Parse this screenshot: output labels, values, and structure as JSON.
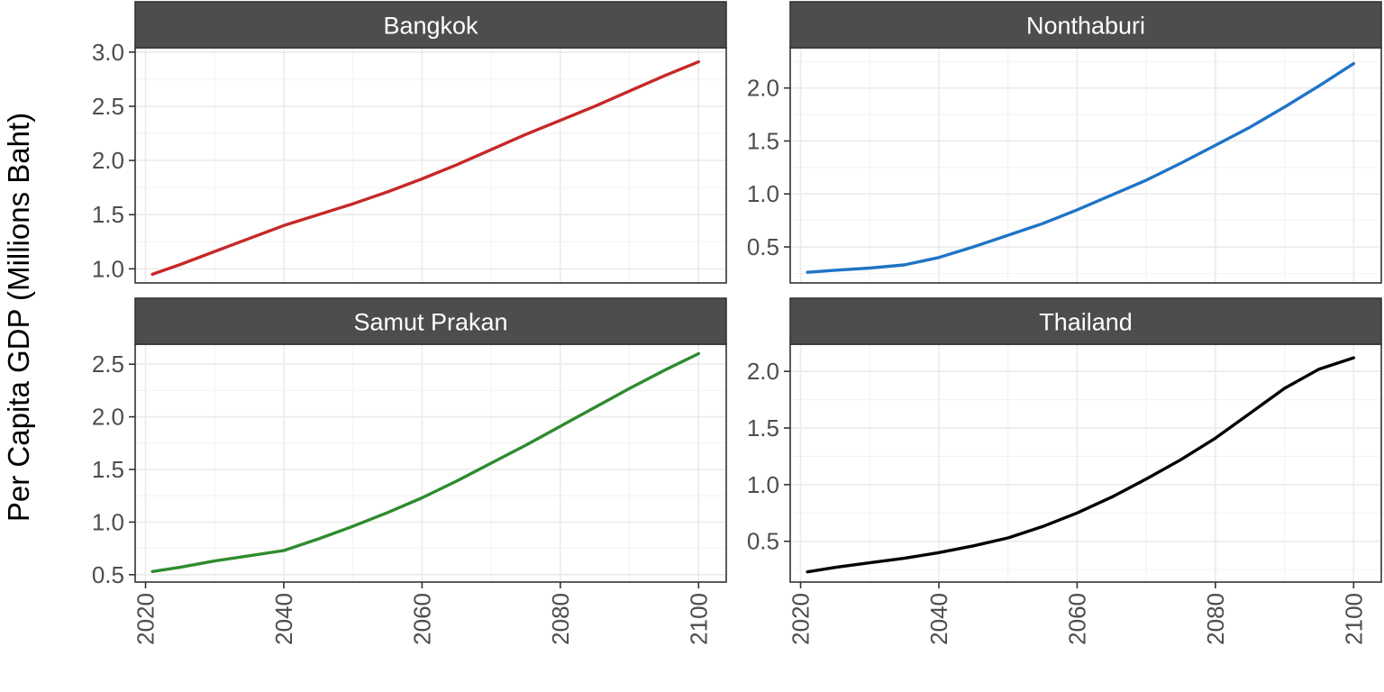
{
  "chart_data": {
    "type": "line",
    "ylabel": "Per Capita GDP (Millions Baht)",
    "xlabel": "",
    "x_ticks": [
      2020,
      2040,
      2060,
      2080,
      2100
    ],
    "xlim": [
      2018.5,
      2104.0
    ],
    "grid": true,
    "legend": "none",
    "panels": [
      {
        "title": "Bangkok",
        "color": "#c62828",
        "ylim": [
          0.87,
          3.04
        ],
        "y_ticks": [
          1.0,
          1.5,
          2.0,
          2.5,
          3.0
        ],
        "y_tick_labels": [
          "1.0",
          "1.5",
          "2.0",
          "2.5",
          "3.0"
        ],
        "x": [
          2021,
          2025,
          2030,
          2035,
          2040,
          2045,
          2050,
          2055,
          2060,
          2065,
          2070,
          2075,
          2080,
          2085,
          2090,
          2095,
          2100
        ],
        "y": [
          0.95,
          1.04,
          1.16,
          1.28,
          1.4,
          1.5,
          1.6,
          1.71,
          1.83,
          1.96,
          2.1,
          2.24,
          2.37,
          2.5,
          2.64,
          2.78,
          2.91
        ]
      },
      {
        "title": "Nonthaburi",
        "color": "#1f74c6",
        "ylim": [
          0.16,
          2.38
        ],
        "y_ticks": [
          0.5,
          1.0,
          1.5,
          2.0
        ],
        "y_tick_labels": [
          "0.5",
          "1.0",
          "1.5",
          "2.0"
        ],
        "x": [
          2021,
          2025,
          2030,
          2035,
          2040,
          2045,
          2050,
          2055,
          2060,
          2065,
          2070,
          2075,
          2080,
          2085,
          2090,
          2095,
          2100
        ],
        "y": [
          0.26,
          0.28,
          0.3,
          0.33,
          0.4,
          0.5,
          0.61,
          0.72,
          0.85,
          0.99,
          1.13,
          1.29,
          1.46,
          1.63,
          1.82,
          2.02,
          2.23
        ]
      },
      {
        "title": "Samut Prakan",
        "color": "#2e8b2e",
        "ylim": [
          0.43,
          2.69
        ],
        "y_ticks": [
          0.5,
          1.0,
          1.5,
          2.0,
          2.5
        ],
        "y_tick_labels": [
          "0.5",
          "1.0",
          "1.5",
          "2.0",
          "2.5"
        ],
        "x": [
          2021,
          2025,
          2030,
          2035,
          2040,
          2045,
          2050,
          2055,
          2060,
          2065,
          2070,
          2075,
          2080,
          2085,
          2090,
          2095,
          2100
        ],
        "y": [
          0.53,
          0.57,
          0.63,
          0.68,
          0.73,
          0.84,
          0.96,
          1.09,
          1.23,
          1.39,
          1.56,
          1.73,
          1.91,
          2.09,
          2.27,
          2.44,
          2.6
        ]
      },
      {
        "title": "Thailand",
        "color": "#000000",
        "ylim": [
          0.14,
          2.24
        ],
        "y_ticks": [
          0.5,
          1.0,
          1.5,
          2.0
        ],
        "y_tick_labels": [
          "0.5",
          "1.0",
          "1.5",
          "2.0"
        ],
        "x": [
          2021,
          2025,
          2030,
          2035,
          2040,
          2045,
          2050,
          2055,
          2060,
          2065,
          2070,
          2075,
          2080,
          2085,
          2090,
          2095,
          2100
        ],
        "y": [
          0.23,
          0.27,
          0.31,
          0.35,
          0.4,
          0.46,
          0.53,
          0.63,
          0.75,
          0.89,
          1.05,
          1.22,
          1.41,
          1.63,
          1.85,
          2.02,
          2.12
        ]
      }
    ]
  }
}
